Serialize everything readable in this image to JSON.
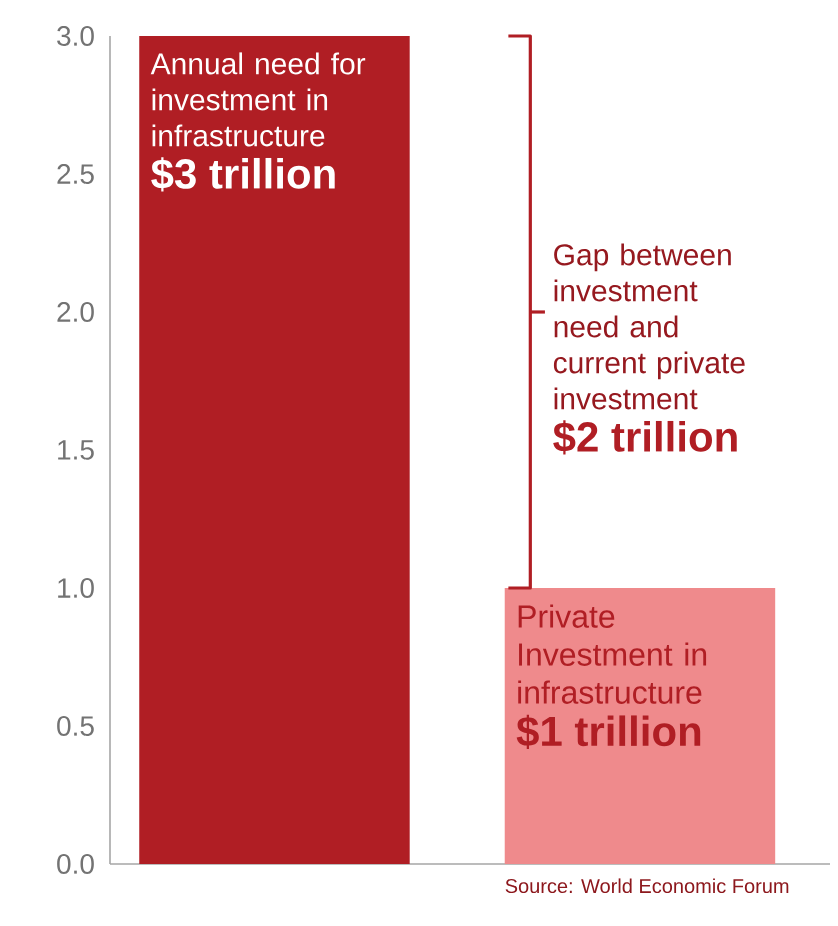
{
  "chart_data": {
    "type": "bar",
    "categories": [
      null,
      null
    ],
    "values": [
      3,
      1
    ],
    "colors": [
      "#b01e24",
      "#ef8a8c"
    ],
    "value_labels": [
      "$3 trillion",
      "$1 trillion"
    ],
    "ylim": [
      0,
      3.0
    ],
    "yticks": [
      {
        "value": 0,
        "label": "0.0"
      },
      {
        "value": 0.5,
        "label": "0.5"
      },
      {
        "value": 1,
        "label": "1.0"
      },
      {
        "value": 1.5,
        "label": "1.5"
      },
      {
        "value": 2,
        "label": "2.0"
      },
      {
        "value": 2.5,
        "label": "2.5"
      },
      {
        "value": 3,
        "label": "3.0"
      }
    ],
    "annotations": [
      "Annual need for investment in infrastructure",
      "Private Investment in infrastructure",
      "Gap between investment need and current private investment",
      "$2 trillion",
      "Source: World Economic Forum"
    ]
  }
}
